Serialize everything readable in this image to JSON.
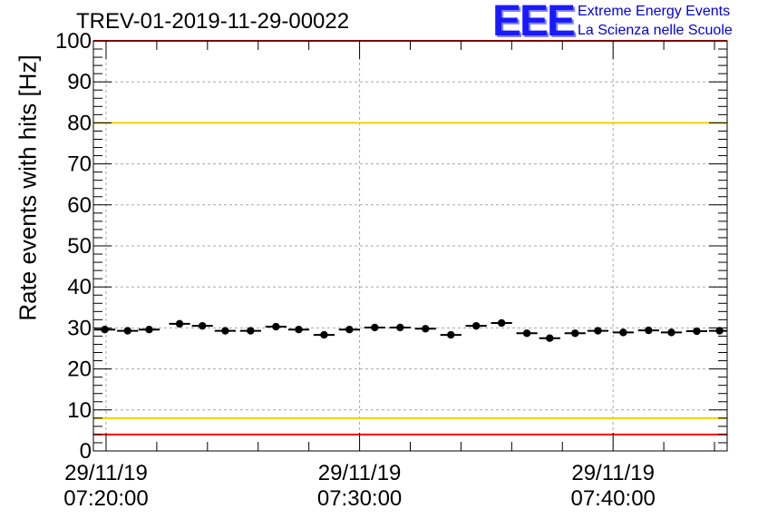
{
  "chart_data": {
    "type": "scatter",
    "title": "TREV-01-2019-11-29-00022",
    "ylabel": "Rate events with hits [Hz]",
    "xlabel": "",
    "ylim": [
      0,
      100
    ],
    "yticks": [
      0,
      10,
      20,
      30,
      40,
      50,
      60,
      70,
      80,
      90,
      100
    ],
    "xlim_minutes": [
      -0.5,
      24.5
    ],
    "xticks": [
      {
        "minute": 0,
        "date": "29/11/19",
        "time": "07:20:00"
      },
      {
        "minute": 10,
        "date": "29/11/19",
        "time": "07:30:00"
      },
      {
        "minute": 20,
        "date": "29/11/19",
        "time": "07:40:00"
      }
    ],
    "bin_width_minutes": 0.83,
    "series": [
      {
        "name": "rate",
        "x_minutes": [
          -0.05,
          0.85,
          1.7,
          2.9,
          3.8,
          4.7,
          5.7,
          6.7,
          7.6,
          8.6,
          9.6,
          10.6,
          11.6,
          12.6,
          13.6,
          14.6,
          15.6,
          16.6,
          17.5,
          18.5,
          19.4,
          20.4,
          21.4,
          22.3,
          23.3,
          24.2
        ],
        "values": [
          29.6,
          29.3,
          29.6,
          31.0,
          30.5,
          29.3,
          29.3,
          30.3,
          29.6,
          28.3,
          29.6,
          30.1,
          30.1,
          29.8,
          28.3,
          30.5,
          31.2,
          28.7,
          27.5,
          28.7,
          29.3,
          28.9,
          29.4,
          28.9,
          29.2,
          29.3
        ]
      }
    ],
    "reference_lines": [
      {
        "name": "upper-red-limit",
        "value": 100,
        "color": "#ff0000"
      },
      {
        "name": "upper-yellow-limit",
        "value": 80,
        "color": "#f5d000"
      },
      {
        "name": "lower-yellow-limit",
        "value": 8,
        "color": "#f5d000"
      },
      {
        "name": "lower-red-limit",
        "value": 4,
        "color": "#ff0000"
      }
    ],
    "grid": true
  },
  "logo": {
    "mark": "EEE",
    "line1": "Extreme Energy Events",
    "line2": "La Scienza nelle Scuole"
  }
}
